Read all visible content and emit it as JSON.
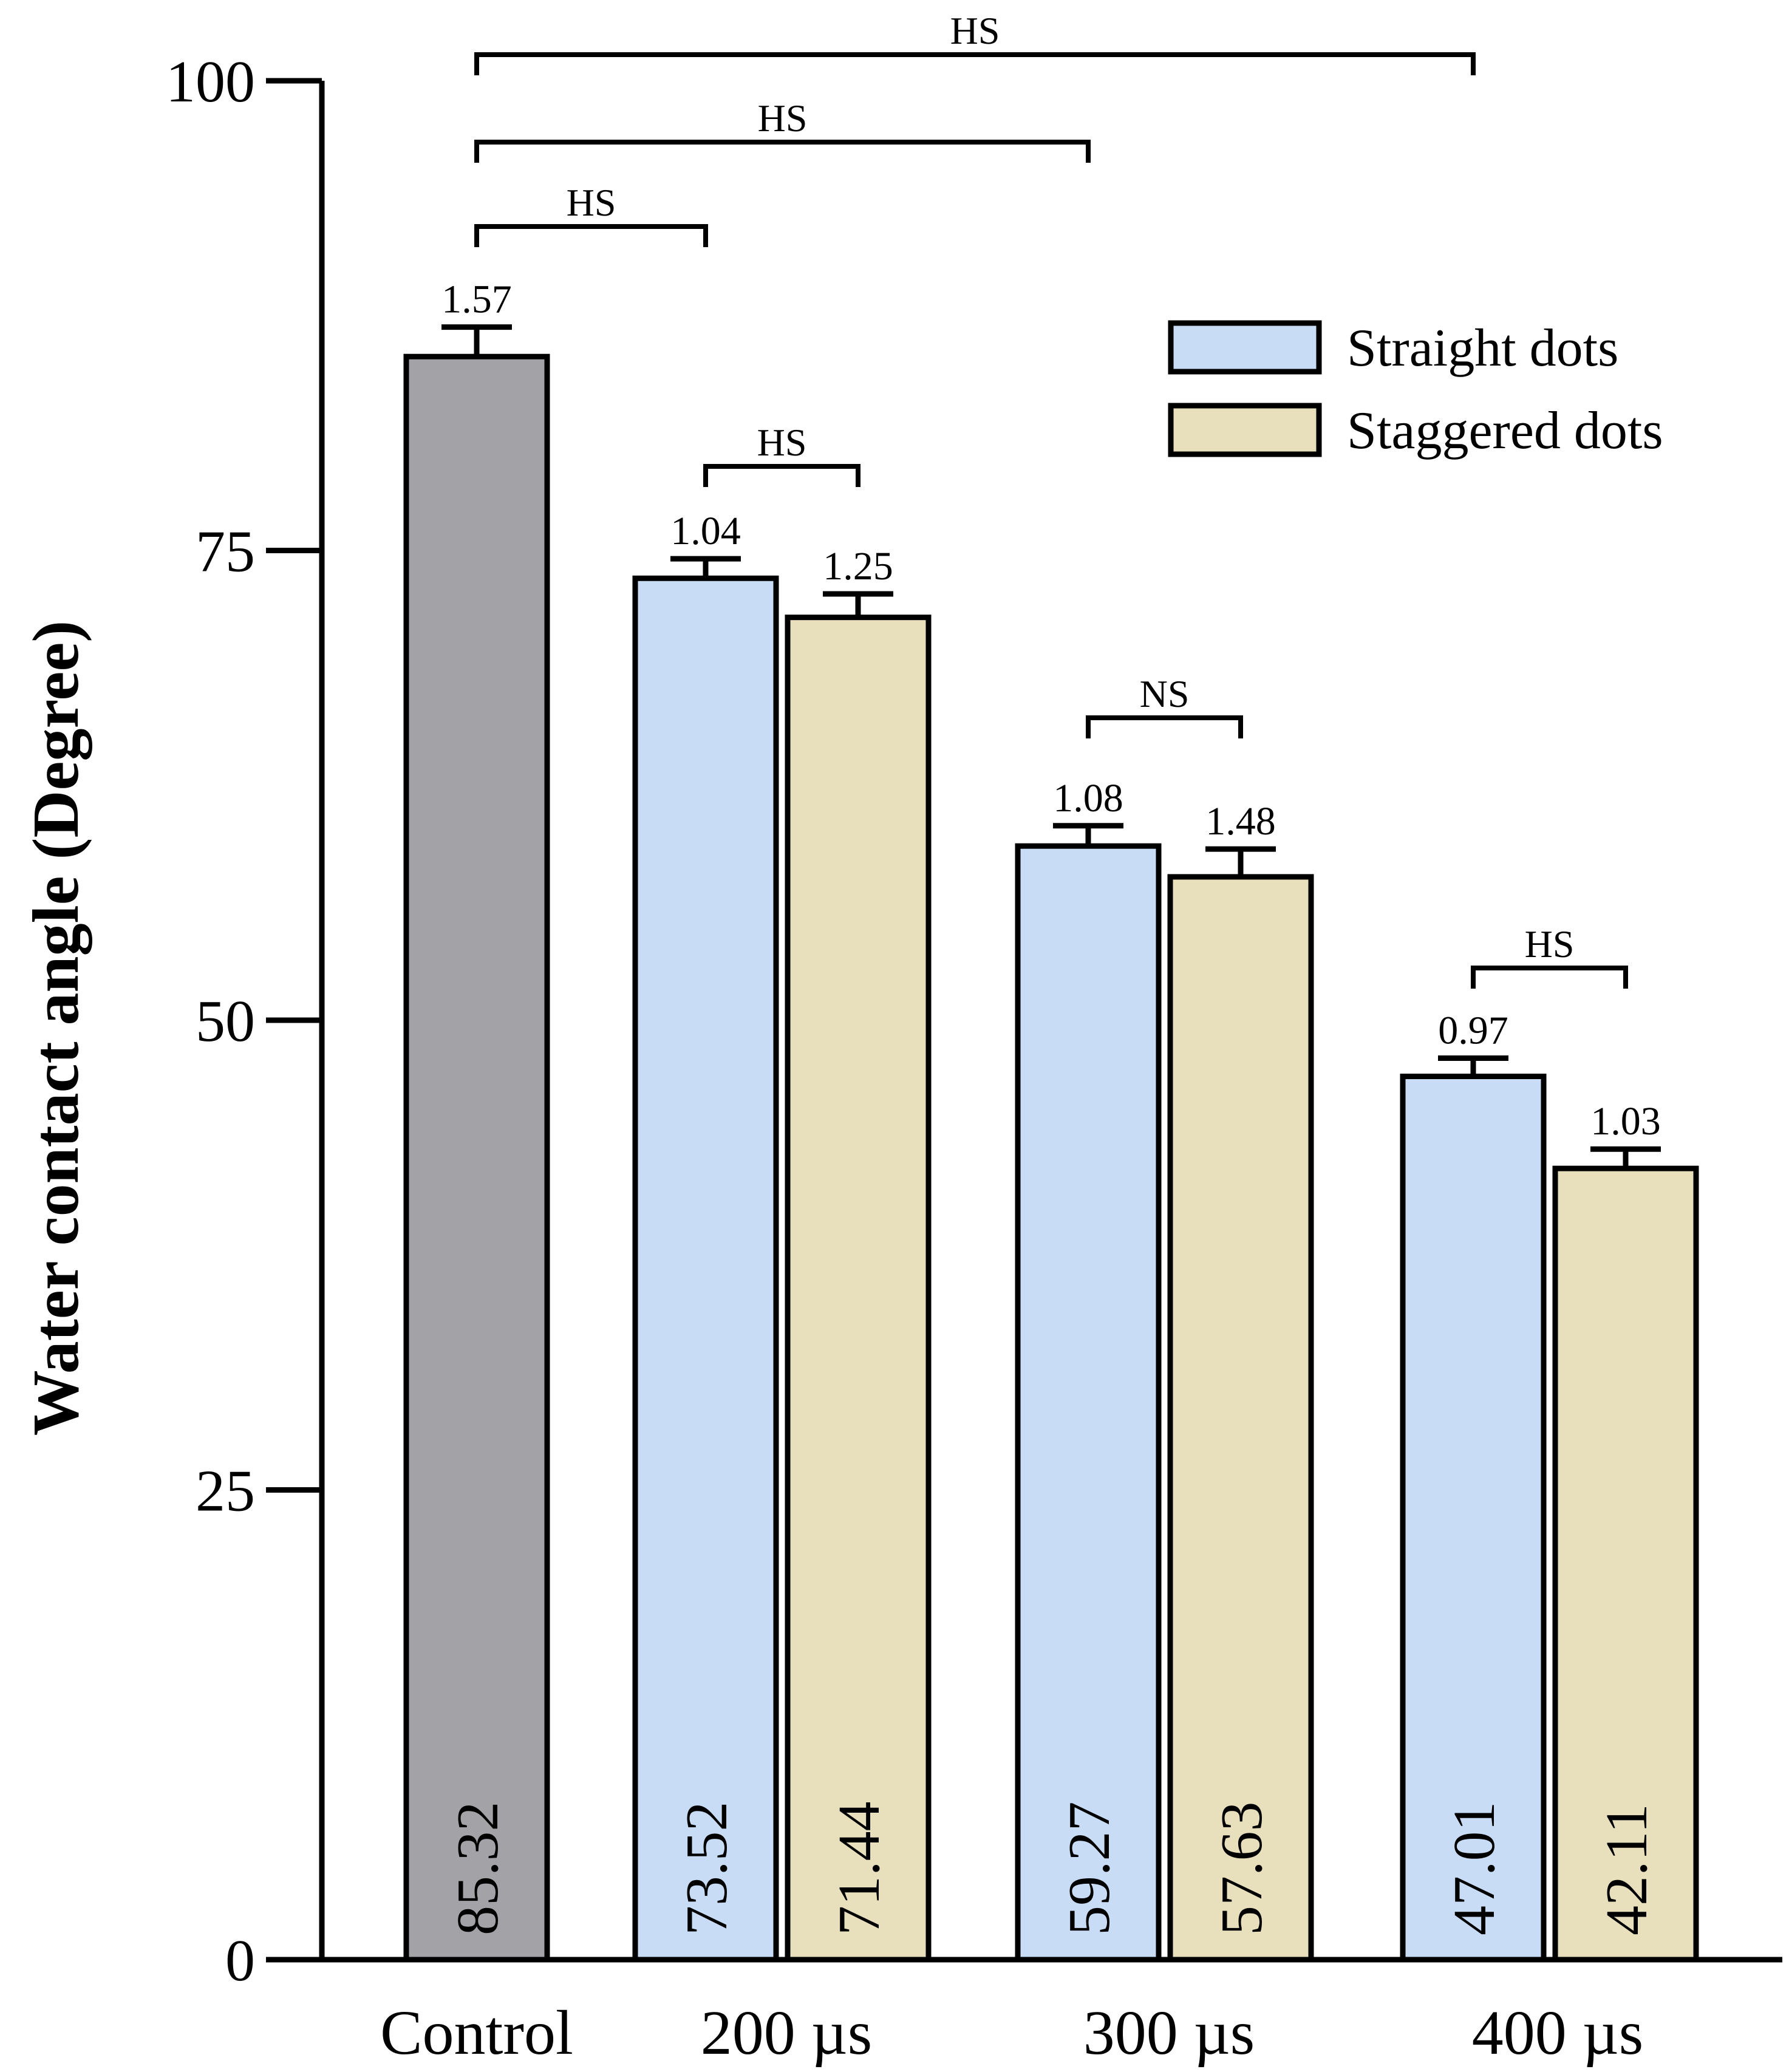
{
  "chart_data": {
    "type": "bar",
    "title": "",
    "xlabel": "",
    "ylabel": "Water contact angle (Degree)",
    "ylim": [
      0,
      100
    ],
    "yticks": [
      0,
      25,
      50,
      75,
      100
    ],
    "grid": false,
    "legend_position": "top-right",
    "categories": [
      "Control",
      "200 µs",
      "300 µs",
      "400 µs"
    ],
    "series": [
      {
        "name": "",
        "color": "#a3a2a7",
        "values": [
          85.32,
          null,
          null,
          null
        ],
        "errors": [
          1.57,
          null,
          null,
          null
        ],
        "value_labels": [
          "85.32",
          null,
          null,
          null
        ],
        "error_labels": [
          "1.57",
          null,
          null,
          null
        ]
      },
      {
        "name": "Straight dots",
        "color": "#c9dcf5",
        "values": [
          null,
          73.52,
          59.27,
          47.01
        ],
        "errors": [
          null,
          1.04,
          1.08,
          0.97
        ],
        "value_labels": [
          null,
          "73.52",
          "59.27",
          "47.01"
        ],
        "error_labels": [
          null,
          "1.04",
          "1.08",
          "0.97"
        ]
      },
      {
        "name": "Staggered dots",
        "color": "#e8dfbd",
        "values": [
          null,
          71.44,
          57.63,
          42.11
        ],
        "errors": [
          null,
          1.25,
          1.48,
          1.03
        ],
        "value_labels": [
          null,
          "71.44",
          "57.63",
          "42.11"
        ],
        "error_labels": [
          null,
          "1.25",
          "1.48",
          "1.03"
        ]
      }
    ],
    "significance": [
      {
        "from": "Control",
        "to": "400 µs · Straight dots",
        "label": "HS"
      },
      {
        "from": "Control",
        "to": "300 µs · Straight dots",
        "label": "HS"
      },
      {
        "from": "Control",
        "to": "200 µs · Straight dots",
        "label": "HS"
      },
      {
        "from": "200 µs · Straight dots",
        "to": "200 µs · Staggered dots",
        "label": "HS"
      },
      {
        "from": "300 µs · Straight dots",
        "to": "300 µs · Staggered dots",
        "label": "NS"
      },
      {
        "from": "400 µs · Straight dots",
        "to": "400 µs · Staggered dots",
        "label": "HS"
      }
    ]
  }
}
